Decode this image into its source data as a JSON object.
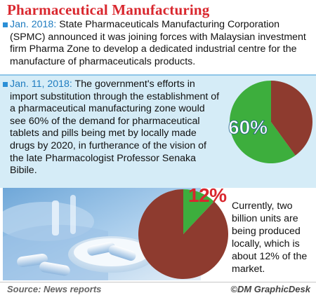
{
  "title": "Pharmaceutical Manufacturing",
  "items": [
    {
      "date": "Jan. 2018:",
      "text": " State Pharmaceuticals Manufacturing Corporation (SPMC) announced it was joining forces with Malaysian investment firm Pharma Zone to develop a dedicated industrial centre for the manufacture of pharmaceuticals products."
    },
    {
      "date": "Jan. 11, 2018:",
      "text": " The government's efforts in import substitution through the establishment of a pharmaceutical manufacturing zone would see 60% of the demand for pharmaceutical tablets and pills being met by locally made drugs by 2020, in furtherance of the vision of the late Pharmacologist Professor Senaka Bibile."
    }
  ],
  "note": "Currently, two billion units are being produced locally, which is about 12% of the market.",
  "footer": {
    "source": "Source: News reports",
    "credit": "©DM GraphicDesk"
  },
  "colors": {
    "title": "#d9272e",
    "accent": "#2b8fd6",
    "slice": "#3dae3d",
    "rest": "#8e3b2f",
    "panel": "#d5ecf7"
  },
  "chart_data": [
    {
      "type": "pie",
      "label": "60%",
      "slices": [
        {
          "value": 60,
          "color": "#3dae3d"
        },
        {
          "value": 40,
          "color": "#8e3b2f"
        }
      ]
    },
    {
      "type": "pie",
      "label": "12%",
      "slices": [
        {
          "value": 12,
          "color": "#3dae3d"
        },
        {
          "value": 88,
          "color": "#8e3b2f"
        }
      ]
    }
  ]
}
